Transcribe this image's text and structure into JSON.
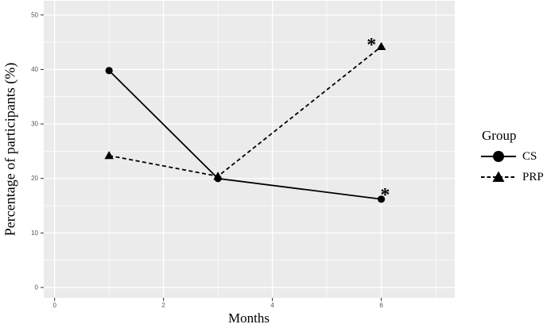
{
  "figure": {
    "x_axis_title": "Months",
    "y_axis_title": "Percentage of participants (%)"
  },
  "legend": {
    "title": "Group",
    "items": [
      {
        "label": "CS",
        "marker": "circle",
        "line_style": "solid"
      },
      {
        "label": "PRP",
        "marker": "triangle",
        "line_style": "dashed"
      }
    ]
  },
  "colors": {
    "canvas": "#ffffff",
    "plot_background": "#ebebeb",
    "gridline": "#ffffff",
    "series": "#000000",
    "tick_label": "#555555",
    "tick_mark": "#333333"
  },
  "chart_data": {
    "type": "line",
    "title": "",
    "xlabel": "Months",
    "ylabel": "Percentage of participants (%)",
    "x": [
      1,
      3,
      6
    ],
    "series": [
      {
        "name": "CS",
        "marker": "circle",
        "line_style": "solid",
        "values": [
          39.8,
          20.0,
          16.2
        ]
      },
      {
        "name": "PRP",
        "marker": "triangle",
        "line_style": "dashed",
        "values": [
          24.2,
          20.4,
          44.2
        ]
      }
    ],
    "xlim": [
      -0.2,
      7.35
    ],
    "ylim": [
      -1.9,
      52.6
    ],
    "x_ticks": [
      0,
      2,
      4,
      6
    ],
    "x_minor_ticks": [
      1,
      3,
      5,
      7
    ],
    "y_ticks": [
      0,
      10,
      20,
      30,
      40,
      50
    ],
    "y_minor_ticks": [
      5,
      15,
      25,
      35,
      45
    ],
    "grid": true,
    "legend_title": "Group",
    "legend_position": "right",
    "annotations": [
      {
        "text": "*",
        "x": 5.82,
        "y": 45.2,
        "series": "PRP"
      },
      {
        "text": "*",
        "x": 6.07,
        "y": 17.6,
        "series": "CS"
      }
    ]
  }
}
